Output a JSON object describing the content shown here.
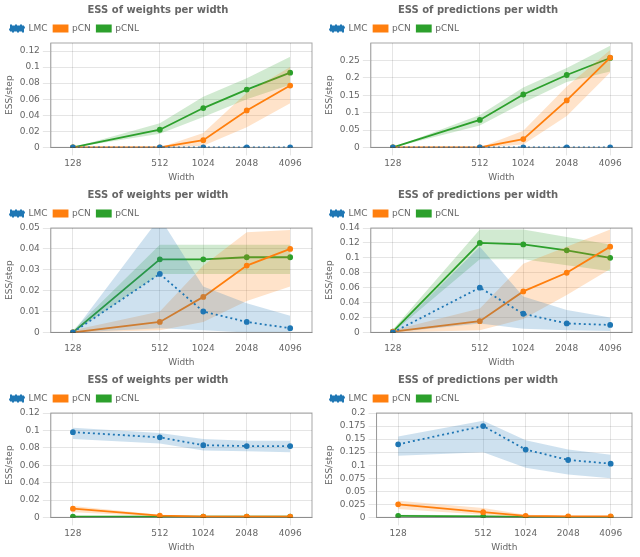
{
  "chart_data": [
    {
      "type": "line",
      "title": "ESS of weights per width",
      "xlabel": "Width",
      "ylabel": "ESS/step",
      "x": [
        128,
        512,
        1024,
        2048,
        4096
      ],
      "series": [
        {
          "name": "LMC",
          "color": "#1f77b4",
          "line_style": "dotted",
          "marker": "o",
          "values": [
            0.0,
            0.0,
            0.0,
            0.0,
            0.0
          ],
          "lo": [
            0.0,
            0.0,
            0.0,
            0.0,
            0.0
          ],
          "hi": [
            0.0,
            0.0,
            0.0,
            0.0,
            0.0
          ]
        },
        {
          "name": "pCN",
          "color": "#ff7f0e",
          "line_style": "solid",
          "marker": "o",
          "values": [
            0.0,
            0.0,
            0.009,
            0.046,
            0.077
          ],
          "lo": [
            0.0,
            0.0,
            0.002,
            0.025,
            0.055
          ],
          "hi": [
            0.0,
            0.0,
            0.018,
            0.068,
            0.1
          ]
        },
        {
          "name": "pCNL",
          "color": "#2ca02c",
          "line_style": "solid",
          "marker": "o",
          "values": [
            0.0,
            0.022,
            0.049,
            0.072,
            0.093
          ],
          "lo": [
            0.0,
            0.017,
            0.038,
            0.06,
            0.078
          ],
          "hi": [
            0.0,
            0.03,
            0.063,
            0.086,
            0.113
          ]
        }
      ],
      "log": "x",
      "xlim": [
        90,
        5800
      ],
      "xticks": [
        128,
        512,
        1024,
        2048,
        4096
      ],
      "ylim": [
        0,
        0.13
      ],
      "yticks": [
        0,
        0.02,
        0.04,
        0.06,
        0.08,
        0.1,
        0.12
      ],
      "grid": true,
      "legend": "upper left"
    },
    {
      "type": "line",
      "title": "ESS of predictions per width",
      "xlabel": "Width",
      "ylabel": "ESS/step",
      "x": [
        128,
        512,
        1024,
        2048,
        4096
      ],
      "series": [
        {
          "name": "LMC",
          "color": "#1f77b4",
          "line_style": "dotted",
          "marker": "o",
          "values": [
            0.0,
            0.0,
            0.0,
            0.0,
            0.0
          ],
          "lo": [
            0.0,
            0.0,
            0.0,
            0.0,
            0.0
          ],
          "hi": [
            0.0,
            0.0,
            0.0,
            0.0,
            0.0
          ]
        },
        {
          "name": "pCN",
          "color": "#ff7f0e",
          "line_style": "solid",
          "marker": "o",
          "values": [
            0.0,
            0.0,
            0.024,
            0.135,
            0.258
          ],
          "lo": [
            0.0,
            0.0,
            0.008,
            0.09,
            0.215
          ],
          "hi": [
            0.0,
            0.0,
            0.048,
            0.175,
            0.28
          ]
        },
        {
          "name": "pCNL",
          "color": "#2ca02c",
          "line_style": "solid",
          "marker": "o",
          "values": [
            0.0,
            0.079,
            0.152,
            0.208,
            0.257
          ],
          "lo": [
            0.0,
            0.063,
            0.128,
            0.188,
            0.218
          ],
          "hi": [
            0.0,
            0.093,
            0.172,
            0.228,
            0.292
          ]
        }
      ],
      "log": "x",
      "xlim": [
        90,
        5800
      ],
      "xticks": [
        128,
        512,
        1024,
        2048,
        4096
      ],
      "ylim": [
        0,
        0.3
      ],
      "yticks": [
        0,
        0.05,
        0.1,
        0.15,
        0.2,
        0.25
      ],
      "grid": true,
      "legend": "upper left"
    },
    {
      "type": "line",
      "title": "ESS of weights per width",
      "xlabel": "Width",
      "ylabel": "ESS/step",
      "x": [
        128,
        512,
        1024,
        2048,
        4096
      ],
      "series": [
        {
          "name": "LMC",
          "color": "#1f77b4",
          "line_style": "dotted",
          "marker": "o",
          "values": [
            0.0,
            0.028,
            0.01,
            0.005,
            0.002
          ],
          "lo": [
            0.0,
            0.002,
            0.001,
            0.0,
            0.0
          ],
          "hi": [
            0.0,
            0.055,
            0.022,
            0.014,
            0.008
          ]
        },
        {
          "name": "pCN",
          "color": "#ff7f0e",
          "line_style": "solid",
          "marker": "o",
          "values": [
            0.0,
            0.005,
            0.017,
            0.032,
            0.04
          ],
          "lo": [
            0.0,
            0.001,
            0.005,
            0.015,
            0.022
          ],
          "hi": [
            0.001,
            0.01,
            0.032,
            0.048,
            0.049
          ]
        },
        {
          "name": "pCNL",
          "color": "#2ca02c",
          "line_style": "solid",
          "marker": "o",
          "values": [
            0.0,
            0.035,
            0.035,
            0.036,
            0.036
          ],
          "lo": [
            0.0,
            0.028,
            0.028,
            0.028,
            0.028
          ],
          "hi": [
            0.001,
            0.042,
            0.042,
            0.042,
            0.042
          ]
        }
      ],
      "log": "x",
      "xlim": [
        90,
        5800
      ],
      "xticks": [
        128,
        512,
        1024,
        2048,
        4096
      ],
      "ylim": [
        0,
        0.05
      ],
      "yticks": [
        0,
        0.01,
        0.02,
        0.03,
        0.04,
        0.05
      ],
      "grid": true,
      "legend": "upper left"
    },
    {
      "type": "line",
      "title": "ESS of predictions per width",
      "xlabel": "Width",
      "ylabel": "ESS/step",
      "x": [
        128,
        512,
        1024,
        2048,
        4096
      ],
      "series": [
        {
          "name": "LMC",
          "color": "#1f77b4",
          "line_style": "dotted",
          "marker": "o",
          "values": [
            0.0,
            0.06,
            0.025,
            0.012,
            0.01
          ],
          "lo": [
            0.0,
            0.012,
            0.005,
            0.003,
            0.002
          ],
          "hi": [
            0.0,
            0.115,
            0.048,
            0.03,
            0.02
          ]
        },
        {
          "name": "pCN",
          "color": "#ff7f0e",
          "line_style": "solid",
          "marker": "o",
          "values": [
            0.001,
            0.015,
            0.055,
            0.08,
            0.115
          ],
          "lo": [
            0.0,
            0.003,
            0.018,
            0.05,
            0.085
          ],
          "hi": [
            0.003,
            0.032,
            0.092,
            0.115,
            0.138
          ]
        },
        {
          "name": "pCNL",
          "color": "#2ca02c",
          "line_style": "solid",
          "marker": "o",
          "values": [
            0.001,
            0.12,
            0.118,
            0.11,
            0.1
          ],
          "lo": [
            0.0,
            0.098,
            0.098,
            0.09,
            0.082
          ],
          "hi": [
            0.004,
            0.138,
            0.138,
            0.128,
            0.118
          ]
        }
      ],
      "log": "x",
      "xlim": [
        90,
        5800
      ],
      "xticks": [
        128,
        512,
        1024,
        2048,
        4096
      ],
      "ylim": [
        0,
        0.14
      ],
      "yticks": [
        0,
        0.02,
        0.04,
        0.06,
        0.08,
        0.1,
        0.12,
        0.14
      ],
      "grid": true,
      "legend": "upper left"
    },
    {
      "type": "line",
      "title": "ESS of weights per width",
      "xlabel": "Width",
      "ylabel": "ESS/step",
      "x": [
        128,
        512,
        1024,
        2048,
        4096
      ],
      "series": [
        {
          "name": "LMC",
          "color": "#1f77b4",
          "line_style": "dotted",
          "marker": "o",
          "values": [
            0.098,
            0.092,
            0.083,
            0.082,
            0.082
          ],
          "lo": [
            0.09,
            0.085,
            0.077,
            0.076,
            0.075
          ],
          "hi": [
            0.103,
            0.097,
            0.09,
            0.088,
            0.088
          ]
        },
        {
          "name": "pCN",
          "color": "#ff7f0e",
          "line_style": "solid",
          "marker": "o",
          "values": [
            0.01,
            0.002,
            0.001,
            0.001,
            0.001
          ],
          "lo": [
            0.006,
            0.001,
            0.0,
            0.0,
            0.0
          ],
          "hi": [
            0.013,
            0.003,
            0.002,
            0.002,
            0.002
          ]
        },
        {
          "name": "pCNL",
          "color": "#2ca02c",
          "line_style": "solid",
          "marker": "o",
          "values": [
            0.001,
            0.001,
            0.001,
            0.001,
            0.001
          ],
          "lo": [
            0.0,
            0.0,
            0.0,
            0.0,
            0.0
          ],
          "hi": [
            0.002,
            0.002,
            0.002,
            0.002,
            0.002
          ]
        }
      ],
      "log": "x",
      "xlim": [
        90,
        5800
      ],
      "xticks": [
        128,
        512,
        1024,
        2048,
        4096
      ],
      "ylim": [
        0,
        0.12
      ],
      "yticks": [
        0,
        0.02,
        0.04,
        0.06,
        0.08,
        0.1,
        0.12
      ],
      "grid": true,
      "legend": "upper left"
    },
    {
      "type": "line",
      "title": "ESS of predictions per width",
      "xlabel": "Width",
      "ylabel": "ESS/step",
      "x": [
        128,
        512,
        1024,
        2048,
        4096
      ],
      "series": [
        {
          "name": "LMC",
          "color": "#1f77b4",
          "line_style": "dotted",
          "marker": "o",
          "values": [
            0.14,
            0.175,
            0.13,
            0.11,
            0.103
          ],
          "lo": [
            0.118,
            0.125,
            0.095,
            0.082,
            0.075
          ],
          "hi": [
            0.155,
            0.185,
            0.148,
            0.13,
            0.12
          ]
        },
        {
          "name": "pCN",
          "color": "#ff7f0e",
          "line_style": "solid",
          "marker": "o",
          "values": [
            0.025,
            0.01,
            0.003,
            0.002,
            0.002
          ],
          "lo": [
            0.016,
            0.005,
            0.001,
            0.001,
            0.001
          ],
          "hi": [
            0.032,
            0.018,
            0.005,
            0.003,
            0.003
          ]
        },
        {
          "name": "pCNL",
          "color": "#2ca02c",
          "line_style": "solid",
          "marker": "o",
          "values": [
            0.003,
            0.002,
            0.001,
            0.001,
            0.001
          ],
          "lo": [
            0.001,
            0.001,
            0.0,
            0.0,
            0.0
          ],
          "hi": [
            0.005,
            0.004,
            0.002,
            0.002,
            0.002
          ]
        }
      ],
      "log": "x",
      "xlim": [
        90,
        5800
      ],
      "xticks": [
        128,
        512,
        1024,
        2048,
        4096
      ],
      "ylim": [
        0,
        0.2
      ],
      "yticks": [
        0,
        0.025,
        0.05,
        0.075,
        0.1,
        0.125,
        0.15,
        0.175,
        0.2
      ],
      "grid": true,
      "legend": "upper left"
    }
  ]
}
